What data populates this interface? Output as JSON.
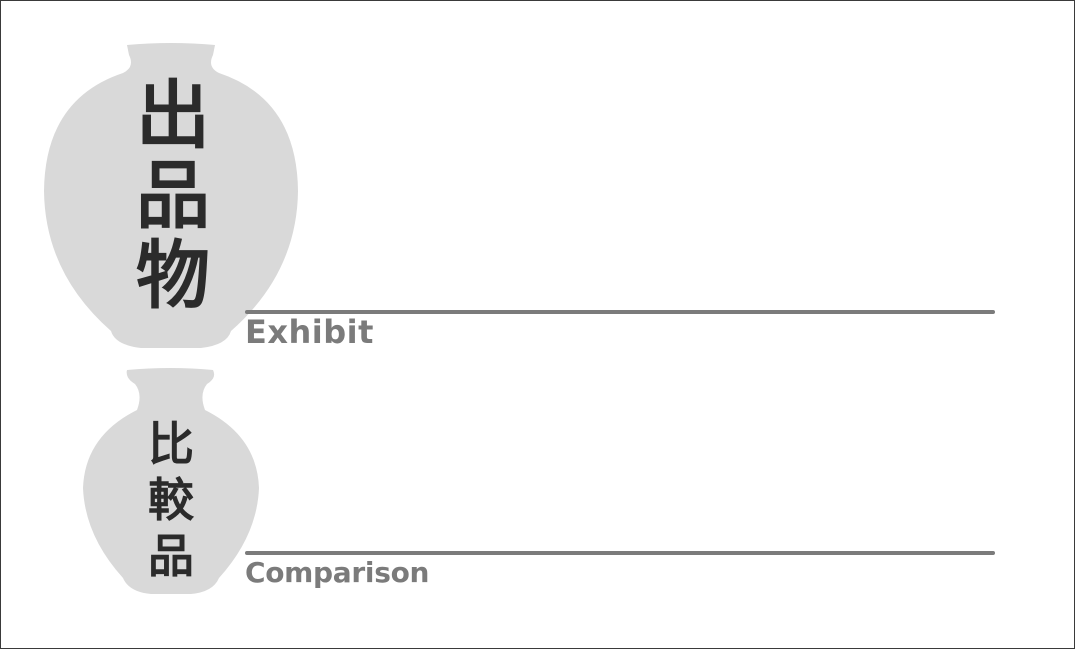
{
  "exhibit": {
    "kanji": [
      "出",
      "品",
      "物"
    ],
    "caption": "Exhibit"
  },
  "comparison": {
    "kanji": [
      "比",
      "較",
      "品"
    ],
    "caption": "Comparison"
  },
  "colors": {
    "vase": "#d9d9d9",
    "kanji": "#2b2b2b",
    "rule": "#7b7b7b",
    "caption": "#7b7b7b",
    "border": "#3a3a3a"
  }
}
